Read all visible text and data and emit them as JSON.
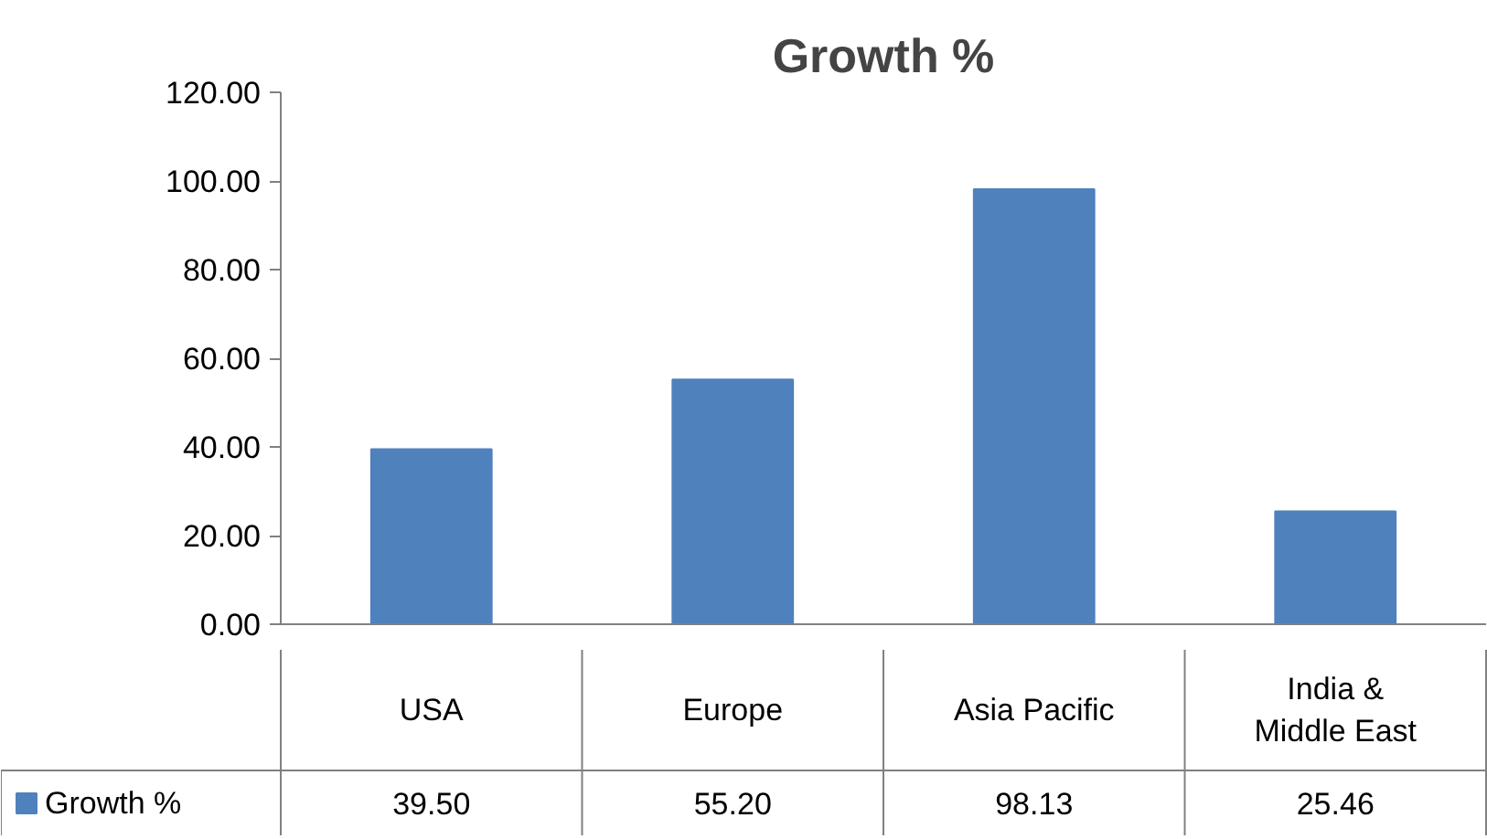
{
  "chart_data": {
    "type": "bar",
    "title": "Growth %",
    "categories": [
      "USA",
      "Europe",
      "Asia Pacific",
      "India & Middle East"
    ],
    "series": [
      {
        "name": "Growth %",
        "color": "#4f81bd",
        "values": [
          39.5,
          55.2,
          98.13,
          25.46
        ],
        "value_labels": [
          "39.50",
          "55.20",
          "98.13",
          "25.46"
        ]
      }
    ],
    "ylim": [
      0,
      120
    ],
    "yticks": [
      {
        "value": 0,
        "label": "0.00"
      },
      {
        "value": 20,
        "label": "20.00"
      },
      {
        "value": 40,
        "label": "40.00"
      },
      {
        "value": 60,
        "label": "60.00"
      },
      {
        "value": 80,
        "label": "80.00"
      },
      {
        "value": 100,
        "label": "100.00"
      },
      {
        "value": 120,
        "label": "120.00"
      }
    ],
    "grid": false,
    "legend": "bottom"
  }
}
